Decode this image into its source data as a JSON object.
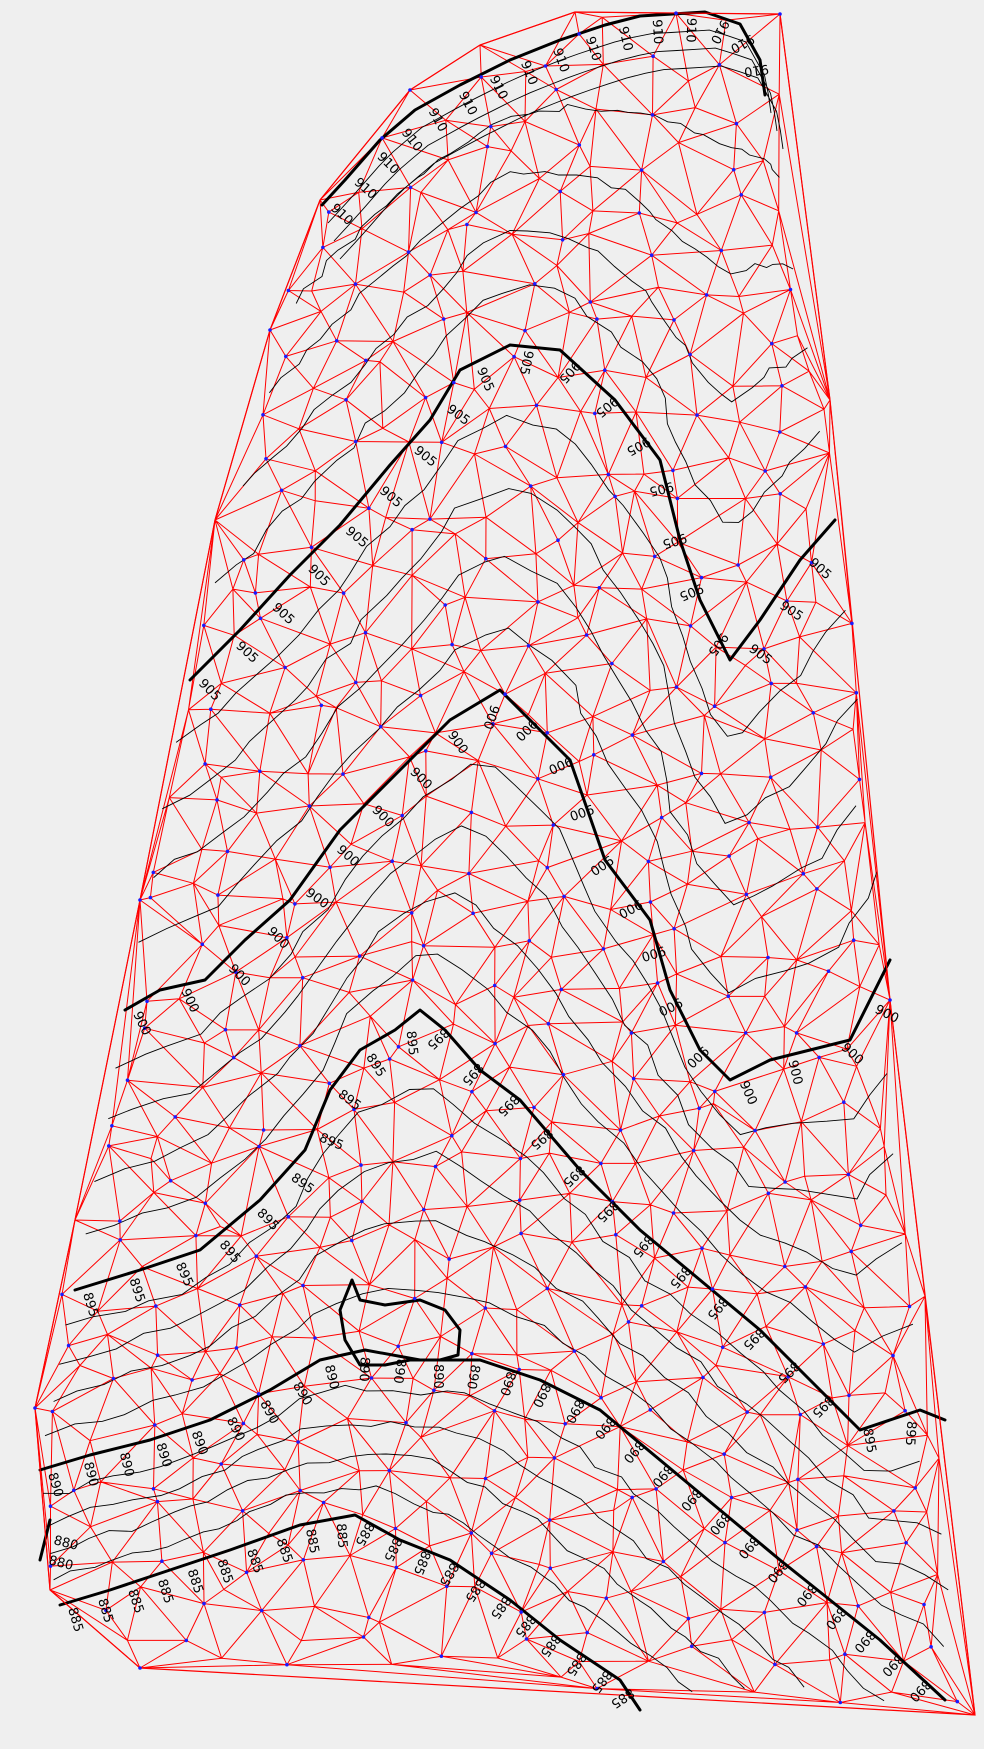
{
  "colors": {
    "background": "#efefef",
    "triangulation": "#ff0000",
    "contour": "#000000",
    "vertex": "#1a1aff"
  },
  "contours": [
    {
      "elevation": "910",
      "labels": [
        "910",
        "910",
        "910",
        "910",
        "910",
        "910",
        "910",
        "910",
        "910",
        "910",
        "910",
        "910",
        "910",
        "910",
        "910",
        "910"
      ]
    },
    {
      "elevation": "905",
      "labels": [
        "905",
        "905",
        "905",
        "905",
        "905",
        "905",
        "905",
        "905",
        "905",
        "905",
        "905",
        "905",
        "905",
        "905",
        "905",
        "905",
        "905",
        "905",
        "905",
        "905"
      ]
    },
    {
      "elevation": "900",
      "labels": [
        "900",
        "900",
        "900",
        "900",
        "900",
        "900",
        "900",
        "900",
        "900",
        "900",
        "900",
        "900",
        "900",
        "900",
        "900",
        "900",
        "900",
        "900",
        "900",
        "900",
        "900",
        "900"
      ]
    },
    {
      "elevation": "895",
      "labels": [
        "895",
        "895",
        "895",
        "895",
        "895",
        "895",
        "895",
        "895",
        "895",
        "895",
        "895",
        "895",
        "895",
        "895",
        "895",
        "895",
        "895",
        "895",
        "895",
        "895",
        "895",
        "895",
        "895",
        "895"
      ]
    },
    {
      "elevation": "890",
      "labels": [
        "890",
        "890",
        "890",
        "890",
        "890",
        "890",
        "890",
        "890",
        "890",
        "890",
        "890",
        "890",
        "890",
        "890",
        "890",
        "890",
        "890",
        "890",
        "890",
        "890",
        "890",
        "890",
        "890",
        "890",
        "890",
        "890",
        "890",
        "890"
      ]
    },
    {
      "elevation": "885",
      "labels": [
        "885",
        "885",
        "885",
        "885",
        "885",
        "885",
        "885",
        "885",
        "885",
        "885",
        "885",
        "885",
        "885",
        "885",
        "885",
        "885",
        "885",
        "885",
        "885",
        "885",
        "885"
      ]
    },
    {
      "elevation": "880",
      "labels": [
        "880",
        "880"
      ]
    }
  ]
}
